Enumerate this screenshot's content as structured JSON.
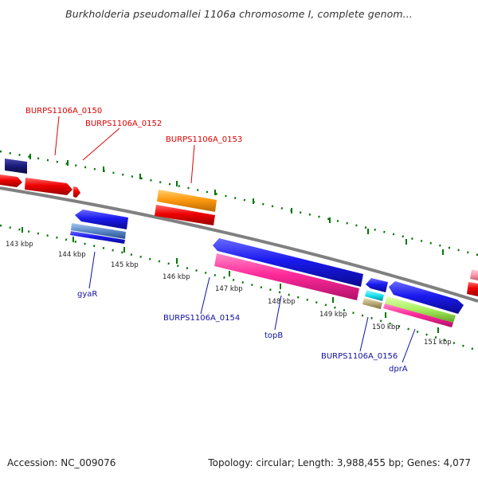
{
  "title": "Burkholderia pseudomallei 1106a chromosome I, complete genom...",
  "footer": {
    "accession": "Accession: NC_009076",
    "topology": "Topology: circular; Length: 3,988,455 bp; Genes: 4,077"
  },
  "ticks": [
    "143 kbp",
    "144 kbp",
    "145 kbp",
    "146 kbp",
    "147 kbp",
    "148 kbp",
    "149 kbp",
    "150 kbp",
    "151 kbp"
  ],
  "gene_labels": {
    "burps_0150": "BURPS1106A_0150",
    "burps_0152": "BURPS1106A_0152",
    "burps_0153": "BURPS1106A_0153",
    "gyar": "gyaR",
    "burps_0154": "BURPS1106A_0154",
    "topb": "topB",
    "burps_0156": "BURPS1106A_0156",
    "dpra": "dprA"
  },
  "colors": {
    "red": "#ee0000",
    "dark_red": "#cc0000",
    "blue": "#1a1aee",
    "navy": "#1a1a7a",
    "orange": "#ff9a10",
    "magenta": "#ff2a9a",
    "cyan": "#18e0f0",
    "light_green": "#a8f060",
    "pink": "#ff9ab0",
    "tan": "#b8a878",
    "steel_blue": "#5a88c8",
    "backbone": "#808080",
    "tick_green": "#007700"
  }
}
